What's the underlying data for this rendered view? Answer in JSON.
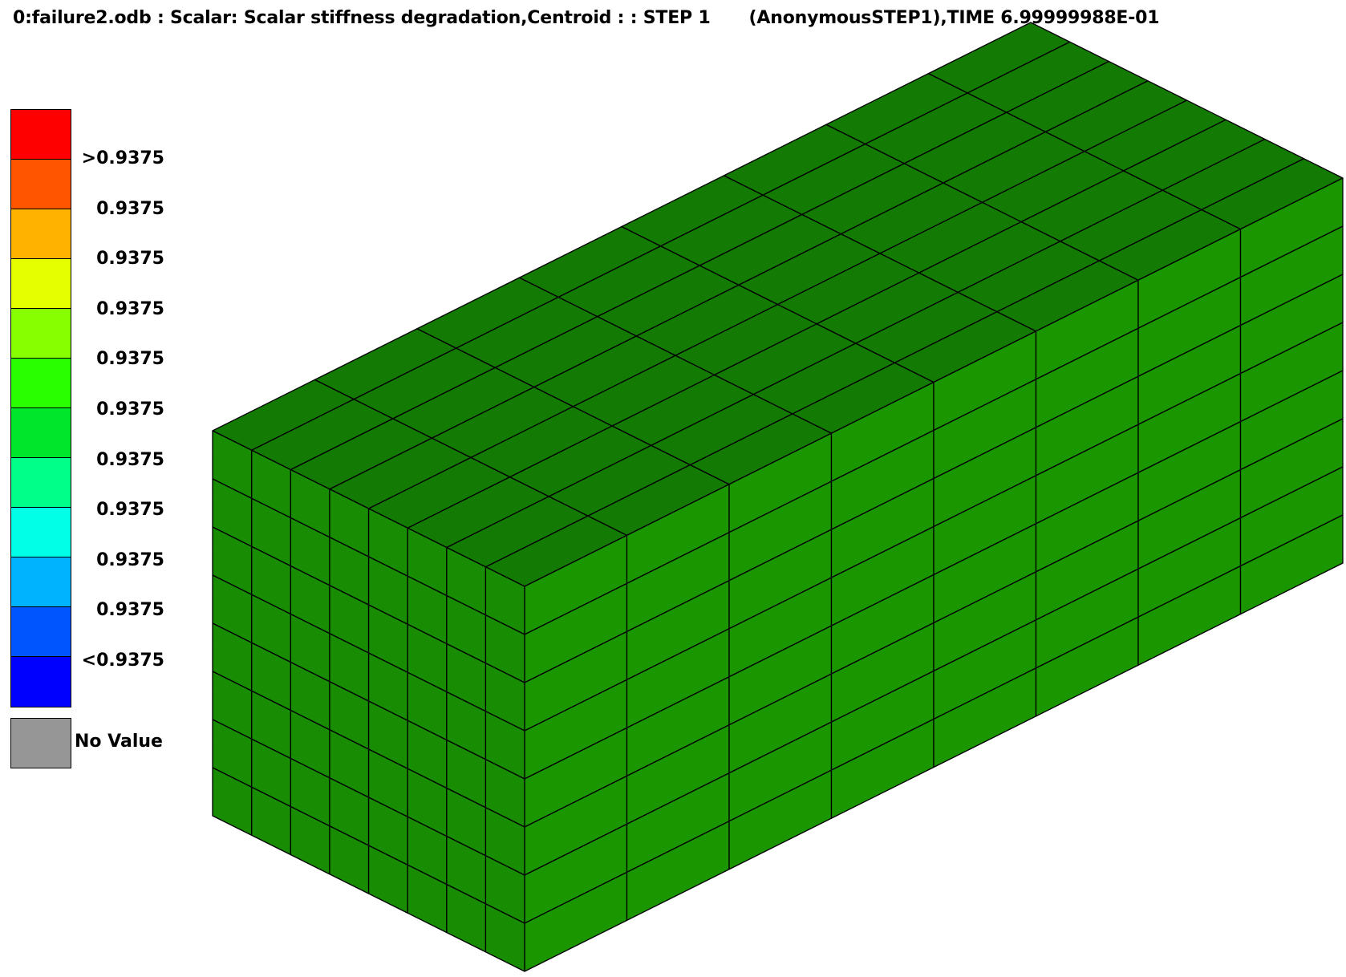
{
  "window": {
    "title": "0:failure2.odb  : Scalar: Scalar stiffness degradation,Centroid :  : STEP 1",
    "step_info": "(AnonymousSTEP1),TIME 6.99999988E-01"
  },
  "legend": {
    "colors": [
      "#ff0000",
      "#ff5500",
      "#ffb300",
      "#e6ff00",
      "#88ff00",
      "#2aff00",
      "#00e62a",
      "#00ff88",
      "#00ffe6",
      "#00b3ff",
      "#0055ff",
      "#0000ff"
    ],
    "labels": [
      ">0.9375",
      "0.9375",
      "0.9375",
      "0.9375",
      "0.9375",
      "0.9375",
      "0.9375",
      "0.9375",
      "0.9375",
      "0.9375",
      "<0.9375"
    ],
    "no_value_label": "No Value",
    "no_value_color": "#969696"
  },
  "model": {
    "face_colors": {
      "top": "#137a03",
      "right": "#199600",
      "front": "#188c03"
    },
    "edge_color": "#000000",
    "elements": {
      "along_length": 8,
      "across_width": 8,
      "through_height": 8
    }
  }
}
